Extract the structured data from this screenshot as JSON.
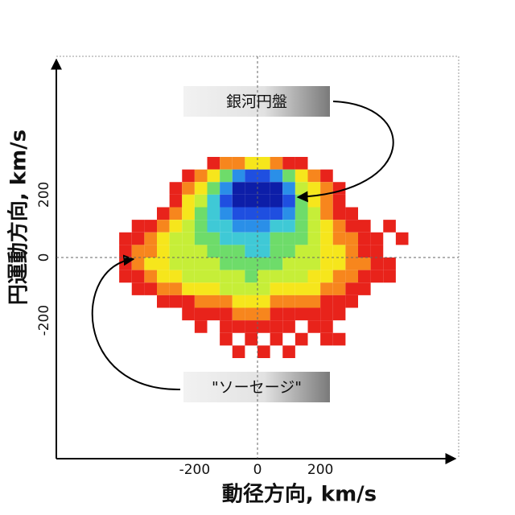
{
  "chart_data": {
    "type": "heatmap",
    "x_label": "動径方向, km/s",
    "y_label": "円運動方向, km/s",
    "xlim": [
      -640,
      640
    ],
    "ylim": [
      -640,
      640
    ],
    "xticks": [
      -200,
      0,
      200
    ],
    "yticks": [
      -200,
      0,
      200
    ],
    "xbins": [
      -440,
      -400,
      -360,
      -320,
      -280,
      -240,
      -200,
      -160,
      -120,
      -80,
      -40,
      0,
      40,
      80,
      120,
      160,
      200,
      240,
      280,
      320,
      360,
      400,
      440,
      480
    ],
    "ybins": [
      320,
      280,
      240,
      200,
      160,
      120,
      80,
      40,
      0,
      -40,
      -80,
      -120,
      -160,
      -200,
      -240,
      -280,
      -320
    ],
    "colorscale": [
      "#e8231b",
      "#f7861d",
      "#f6e61c",
      "#c6ee38",
      "#6edc6a",
      "#3fc9d6",
      "#2a8fe8",
      "#1f4fe0",
      "#0d1ea8"
    ],
    "values": [
      [
        null,
        null,
        null,
        null,
        null,
        null,
        null,
        1,
        2,
        2,
        3,
        3,
        2,
        1,
        1,
        null,
        null,
        null,
        null,
        null,
        null,
        null,
        null
      ],
      [
        null,
        null,
        null,
        null,
        null,
        1,
        2,
        3,
        5,
        7,
        8,
        8,
        7,
        5,
        3,
        2,
        1,
        null,
        null,
        null,
        null,
        null,
        null
      ],
      [
        null,
        null,
        null,
        null,
        1,
        2,
        3,
        5,
        7,
        9,
        9,
        9,
        9,
        7,
        4,
        3,
        2,
        1,
        null,
        null,
        null,
        null,
        null
      ],
      [
        null,
        null,
        null,
        null,
        1,
        3,
        4,
        6,
        8,
        9,
        9,
        9,
        9,
        8,
        5,
        3,
        2,
        1,
        null,
        null,
        null,
        null,
        null
      ],
      [
        null,
        null,
        null,
        1,
        2,
        3,
        5,
        6,
        7,
        8,
        8,
        8,
        8,
        7,
        5,
        4,
        2,
        1,
        1,
        null,
        null,
        null,
        null
      ],
      [
        null,
        1,
        1,
        2,
        3,
        4,
        5,
        6,
        6,
        7,
        7,
        7,
        6,
        6,
        5,
        4,
        3,
        2,
        1,
        1,
        null,
        1,
        null
      ],
      [
        1,
        1,
        2,
        3,
        4,
        4,
        5,
        5,
        6,
        6,
        6,
        6,
        5,
        5,
        5,
        4,
        3,
        2,
        2,
        1,
        1,
        null,
        1
      ],
      [
        1,
        2,
        2,
        3,
        4,
        4,
        4,
        5,
        5,
        5,
        6,
        6,
        5,
        5,
        4,
        4,
        3,
        3,
        2,
        1,
        1,
        null,
        null
      ],
      [
        1,
        2,
        3,
        3,
        4,
        4,
        4,
        4,
        5,
        5,
        5,
        5,
        5,
        4,
        4,
        4,
        3,
        3,
        2,
        2,
        1,
        1,
        null
      ],
      [
        1,
        1,
        2,
        3,
        3,
        4,
        4,
        4,
        4,
        4,
        5,
        4,
        4,
        4,
        4,
        3,
        3,
        2,
        2,
        1,
        1,
        1,
        null
      ],
      [
        null,
        1,
        1,
        2,
        2,
        3,
        3,
        3,
        4,
        4,
        4,
        4,
        3,
        3,
        3,
        3,
        2,
        2,
        1,
        1,
        null,
        null,
        null
      ],
      [
        null,
        null,
        null,
        1,
        1,
        1,
        2,
        2,
        2,
        3,
        3,
        3,
        2,
        2,
        2,
        2,
        1,
        1,
        1,
        null,
        null,
        null,
        null
      ],
      [
        null,
        null,
        null,
        null,
        null,
        1,
        1,
        1,
        1,
        2,
        2,
        2,
        1,
        1,
        1,
        1,
        1,
        1,
        null,
        null,
        null,
        null,
        null
      ],
      [
        null,
        null,
        null,
        null,
        null,
        null,
        1,
        null,
        1,
        1,
        1,
        1,
        1,
        1,
        null,
        1,
        1,
        null,
        null,
        null,
        null,
        null,
        null
      ],
      [
        null,
        null,
        null,
        null,
        null,
        null,
        null,
        null,
        1,
        null,
        1,
        null,
        1,
        null,
        1,
        null,
        1,
        1,
        null,
        null,
        null,
        null,
        null
      ],
      [
        null,
        null,
        null,
        null,
        null,
        null,
        null,
        null,
        null,
        1,
        null,
        1,
        null,
        1,
        null,
        null,
        null,
        null,
        null,
        null,
        null,
        null,
        null
      ]
    ],
    "annotations": [
      {
        "text": "銀河円盤"
      },
      {
        "text": "\"ソーセージ\""
      }
    ]
  }
}
